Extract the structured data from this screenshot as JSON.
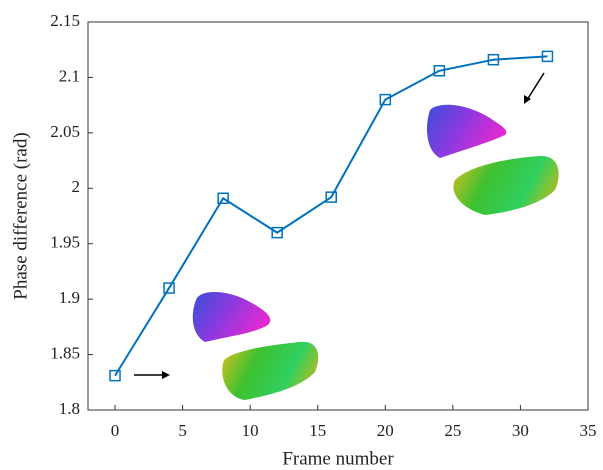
{
  "chart_data": {
    "type": "line",
    "xlabel": "Frame number",
    "ylabel": "Phase difference (rad)",
    "x": [
      0,
      4,
      8,
      12,
      16,
      20,
      24,
      28,
      32
    ],
    "series": [
      {
        "color": "#0072bd",
        "values": [
          1.831,
          1.91,
          1.991,
          1.96,
          1.992,
          2.08,
          2.106,
          2.116,
          2.119
        ]
      }
    ],
    "xlim": [
      -2,
      35
    ],
    "xticks": [
      0,
      5,
      10,
      15,
      20,
      25,
      30,
      35
    ],
    "ylim": [
      1.8,
      2.15
    ],
    "yticks": [
      1.8,
      1.85,
      1.9,
      1.95,
      2,
      2.05,
      2.1,
      2.15
    ],
    "grid": false
  }
}
